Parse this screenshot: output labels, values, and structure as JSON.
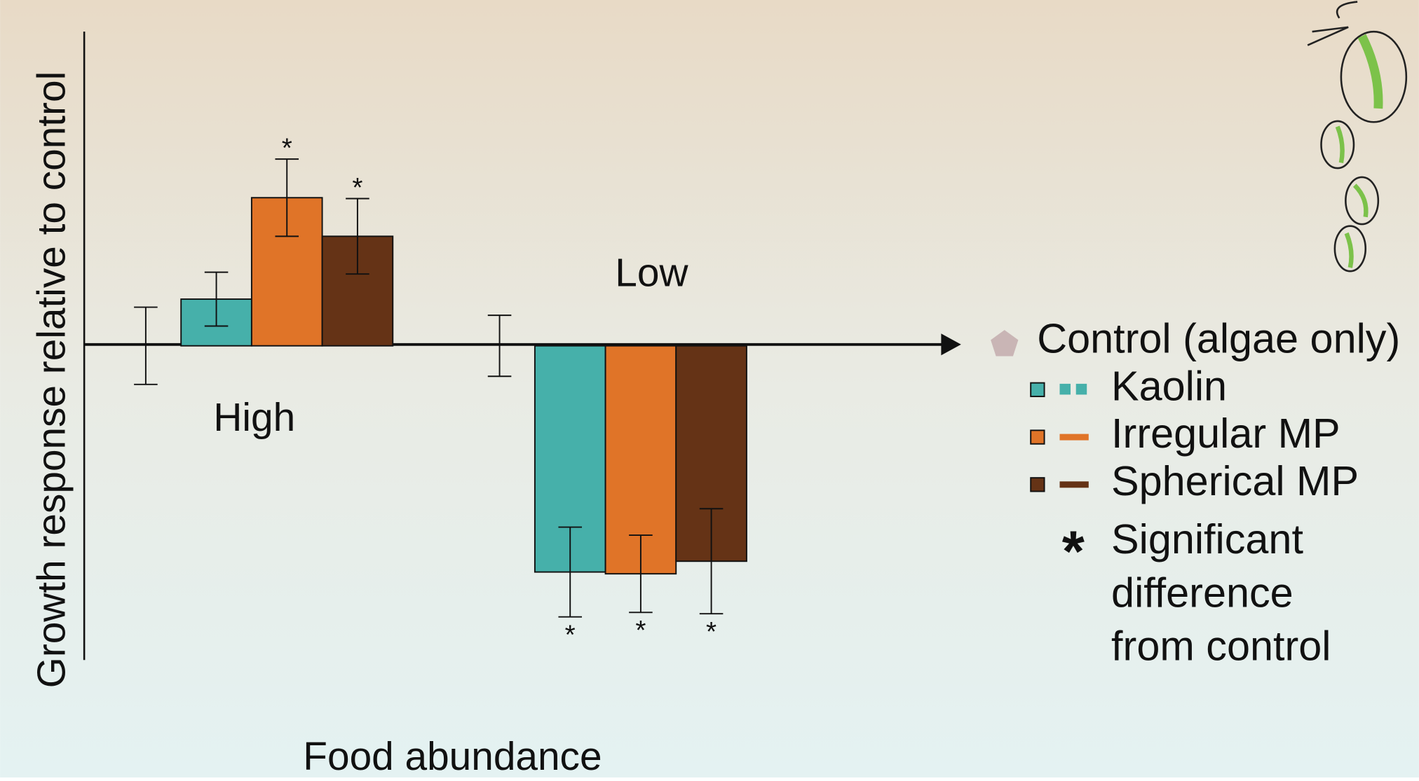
{
  "chart_data": {
    "type": "bar",
    "xlabel": "Food abundance",
    "ylabel": "Growth response relative to control",
    "categories": [
      "High",
      "Low"
    ],
    "ylim": [
      -35,
      35
    ],
    "series": [
      {
        "name": "Control (algae only)",
        "color": "#c9b5b5",
        "values": [
          0,
          0
        ],
        "errors": [
          4.3,
          3.4
        ],
        "significant": [
          false,
          false
        ]
      },
      {
        "name": "Kaolin",
        "color": "#46b0aa",
        "values": [
          5.2,
          -25.2
        ],
        "errors": [
          3,
          5
        ],
        "significant": [
          false,
          true
        ]
      },
      {
        "name": "Irregular MP",
        "color": "#e07428",
        "values": [
          16.5,
          -25.4
        ],
        "errors": [
          4.3,
          4.3
        ],
        "significant": [
          true,
          true
        ]
      },
      {
        "name": "Spherical MP",
        "color": "#653316",
        "values": [
          12.2,
          -24
        ],
        "errors": [
          4.2,
          5.85
        ],
        "significant": [
          true,
          true
        ]
      }
    ],
    "significance_marker": "*",
    "significance_note": [
      "Significant",
      "difference",
      "from control"
    ]
  }
}
